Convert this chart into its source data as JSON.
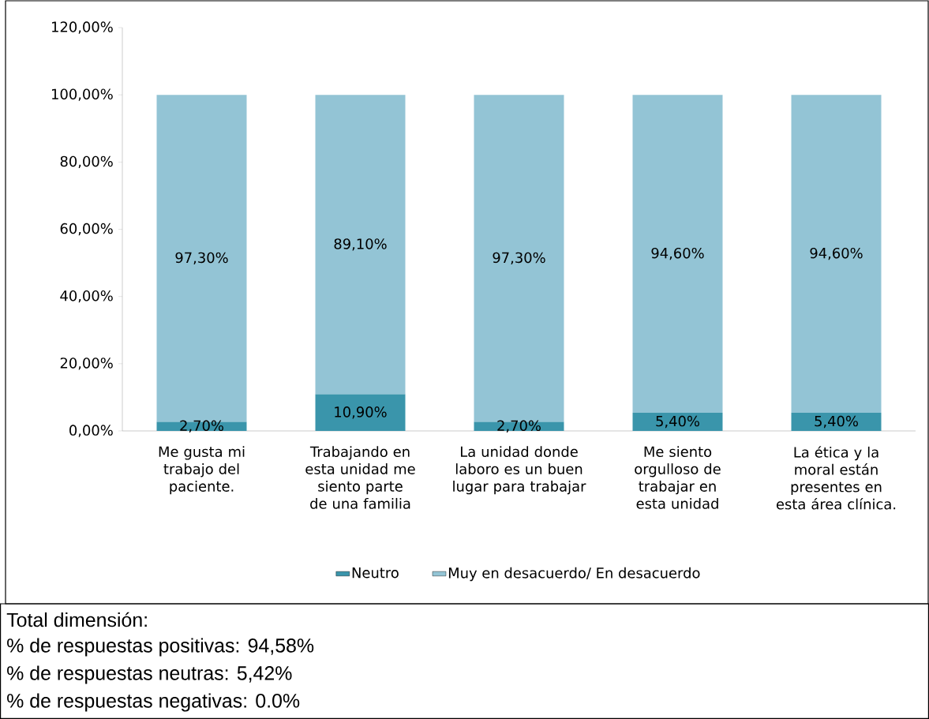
{
  "chart_data": {
    "type": "bar",
    "stacked": true,
    "categories": [
      "Me gusta mi trabajo del paciente.",
      "Trabajando en esta unidad me siento parte de una familia",
      "La unidad donde laboro es un buen lugar para trabajar",
      "Me siento orgulloso de trabajar en esta unidad",
      "La ética y la moral están presentes en esta área clínica."
    ],
    "series": [
      {
        "name": "Neutro",
        "color": "#3a95ab",
        "values": [
          2.7,
          10.9,
          2.7,
          5.4,
          5.4
        ],
        "value_labels": [
          "2,70%",
          "10,90%",
          "2,70%",
          "5,40%",
          "5,40%"
        ]
      },
      {
        "name": "Muy en desacuerdo/   En desacuerdo",
        "color": "#93c4d5",
        "values": [
          97.3,
          89.1,
          97.3,
          94.6,
          94.6
        ],
        "value_labels": [
          "97,30%",
          "89,10%",
          "97,30%",
          "94,60%",
          "94,60%"
        ]
      }
    ],
    "ylim": [
      0,
      120
    ],
    "yticks": [
      {
        "value": 0,
        "label": "0,00%"
      },
      {
        "value": 20,
        "label": "20,00%"
      },
      {
        "value": 40,
        "label": "40,00%"
      },
      {
        "value": 60,
        "label": "60,00%"
      },
      {
        "value": 80,
        "label": "80,00%"
      },
      {
        "value": 100,
        "label": "100,00%"
      },
      {
        "value": 120,
        "label": "120,00%"
      }
    ],
    "grid": false,
    "legend": "bottom",
    "annotations": [
      "Total dimensión:",
      "% de respuestas positivas: 94,58%",
      "% de respuestas neutras: 5,42%",
      "% de respuestas negativas: 0.0%"
    ]
  }
}
